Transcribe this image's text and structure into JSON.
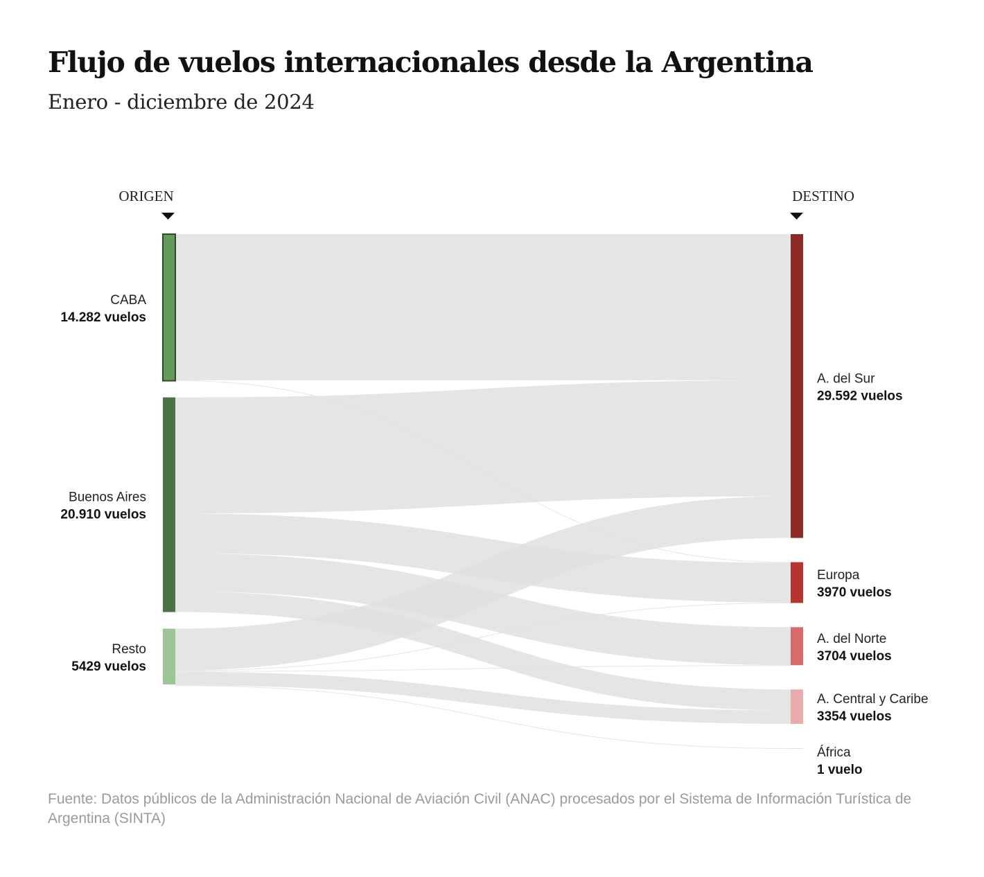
{
  "header": {
    "title": "Flujo de vuelos internacionales desde la Argentina",
    "subtitle": "Enero - diciembre de 2024"
  },
  "footer": {
    "source": "Fuente: Datos públicos de la Administración Nacional de Aviación Civil (ANAC) procesados por el Sistema de Información Turística de Argentina (SINTA)"
  },
  "chart_data": {
    "type": "sankey",
    "columns": {
      "left": "ORIGEN",
      "right": "DESTINO"
    },
    "sources": [
      {
        "id": "caba",
        "name": "CABA",
        "value_label": "14.282 vuelos",
        "value": 14282,
        "color": "#669a5b"
      },
      {
        "id": "bsas",
        "name": "Buenos Aires",
        "value_label": "20.910 vuelos",
        "value": 20910,
        "color": "#4b7445"
      },
      {
        "id": "resto",
        "name": "Resto",
        "value_label": "5429 vuelos",
        "value": 5429,
        "color": "#9cc496"
      }
    ],
    "targets": [
      {
        "id": "sur",
        "name": "A. del Sur",
        "value_label": "29.592 vuelos",
        "value": 29592,
        "color": "#8c2a25"
      },
      {
        "id": "eur",
        "name": "Europa",
        "value_label": "3970 vuelos",
        "value": 3970,
        "color": "#b73530"
      },
      {
        "id": "norte",
        "name": "A. del Norte",
        "value_label": "3704 vuelos",
        "value": 3704,
        "color": "#d66b69"
      },
      {
        "id": "cent",
        "name": "A. Central y Caribe",
        "value_label": "3354 vuelos",
        "value": 3354,
        "color": "#e8adab"
      },
      {
        "id": "afr",
        "name": "África",
        "value_label": "1 vuelo",
        "value": 1,
        "color": "#f3d2d1"
      }
    ],
    "links": [
      {
        "source": "caba",
        "target": "sur",
        "value": 14230
      },
      {
        "source": "caba",
        "target": "eur",
        "value": 52
      },
      {
        "source": "bsas",
        "target": "sur",
        "value": 11300
      },
      {
        "source": "bsas",
        "target": "eur",
        "value": 3870
      },
      {
        "source": "bsas",
        "target": "norte",
        "value": 3700
      },
      {
        "source": "bsas",
        "target": "cent",
        "value": 2040
      },
      {
        "source": "resto",
        "target": "sur",
        "value": 4062
      },
      {
        "source": "resto",
        "target": "eur",
        "value": 48
      },
      {
        "source": "resto",
        "target": "norte",
        "value": 4
      },
      {
        "source": "resto",
        "target": "cent",
        "value": 1314
      },
      {
        "source": "resto",
        "target": "afr",
        "value": 1
      }
    ],
    "link_color": "#e0e0e0"
  }
}
